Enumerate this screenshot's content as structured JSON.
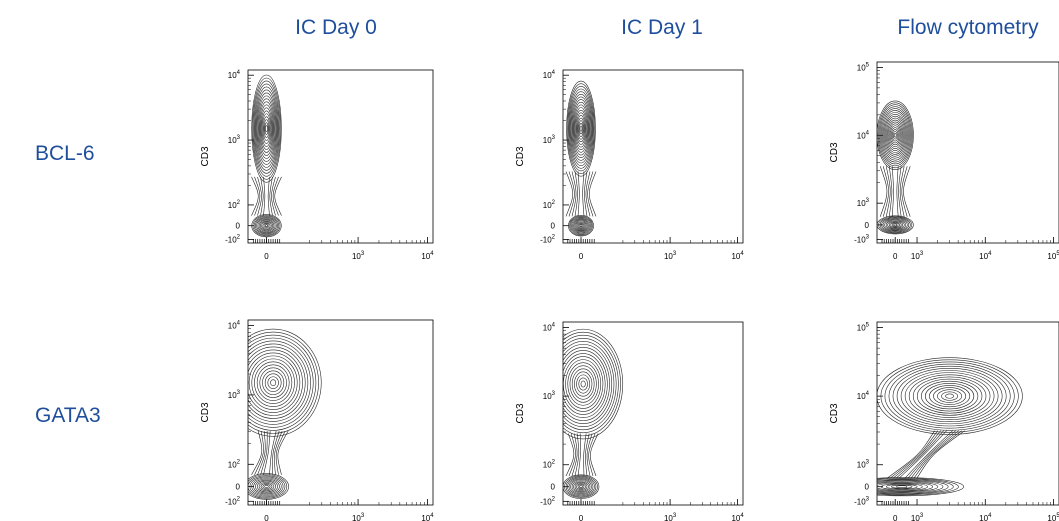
{
  "columns": [
    "IC Day 0",
    "IC Day 1",
    "Flow cytometry"
  ],
  "rows": [
    "BCL-6",
    "GATA3"
  ],
  "colors": {
    "header_text": "#1f4e9c",
    "contour": "#222222",
    "axis": "#000000"
  },
  "chart_data": [
    {
      "type": "contour",
      "row": "BCL-6",
      "column": "IC Day 0",
      "ylabel": "CD3",
      "xtick_labels": [
        {
          "base": "0",
          "exp": ""
        },
        {
          "base": "10",
          "exp": "3"
        },
        {
          "base": "10",
          "exp": "4"
        }
      ],
      "ytick_labels": [
        {
          "base": "-10",
          "exp": "2"
        },
        {
          "base": "0",
          "exp": ""
        },
        {
          "base": "10",
          "exp": "2"
        },
        {
          "base": "10",
          "exp": "3"
        },
        {
          "base": "10",
          "exp": "4"
        }
      ],
      "populations": [
        {
          "name": "CD3 high",
          "x": 0,
          "y": 1500,
          "extent_x": 0.08,
          "extent_y": 0.62,
          "density": 1.0
        },
        {
          "name": "CD3 negative",
          "x": 0,
          "y": 0,
          "extent_x": 0.08,
          "extent_y": 0.13,
          "density": 0.6
        }
      ]
    },
    {
      "type": "contour",
      "row": "BCL-6",
      "column": "IC Day 1",
      "ylabel": "CD3",
      "xtick_labels": [
        {
          "base": "0",
          "exp": ""
        },
        {
          "base": "10",
          "exp": "3"
        },
        {
          "base": "10",
          "exp": "4"
        }
      ],
      "ytick_labels": [
        {
          "base": "-10",
          "exp": "2"
        },
        {
          "base": "0",
          "exp": ""
        },
        {
          "base": "10",
          "exp": "2"
        },
        {
          "base": "10",
          "exp": "3"
        },
        {
          "base": "10",
          "exp": "4"
        }
      ],
      "populations": [
        {
          "name": "CD3 high",
          "x": 0,
          "y": 1500,
          "extent_x": 0.08,
          "extent_y": 0.55,
          "density": 1.0
        },
        {
          "name": "CD3 negative",
          "x": 0,
          "y": 0,
          "extent_x": 0.07,
          "extent_y": 0.12,
          "density": 0.6
        }
      ]
    },
    {
      "type": "contour",
      "row": "BCL-6",
      "column": "Flow cytometry",
      "ylabel": "CD3",
      "xtick_labels": [
        {
          "base": "0",
          "exp": ""
        },
        {
          "base": "10",
          "exp": "3"
        },
        {
          "base": "10",
          "exp": "4"
        },
        {
          "base": "10",
          "exp": "5"
        }
      ],
      "ytick_labels": [
        {
          "base": "-10",
          "exp": "3"
        },
        {
          "base": "0",
          "exp": ""
        },
        {
          "base": "10",
          "exp": "3"
        },
        {
          "base": "10",
          "exp": "4"
        },
        {
          "base": "10",
          "exp": "5"
        }
      ],
      "populations": [
        {
          "name": "CD3 high",
          "x": 0,
          "y": 10000,
          "extent_x": 0.1,
          "extent_y": 0.38,
          "density": 1.0
        },
        {
          "name": "CD3 negative",
          "x": 0,
          "y": 0,
          "extent_x": 0.1,
          "extent_y": 0.1,
          "density": 0.6
        }
      ]
    },
    {
      "type": "contour",
      "row": "GATA3",
      "column": "IC Day 0",
      "ylabel": "CD3",
      "xtick_labels": [
        {
          "base": "0",
          "exp": ""
        },
        {
          "base": "10",
          "exp": "3"
        },
        {
          "base": "10",
          "exp": "4"
        }
      ],
      "ytick_labels": [
        {
          "base": "-10",
          "exp": "2"
        },
        {
          "base": "0",
          "exp": ""
        },
        {
          "base": "10",
          "exp": "2"
        },
        {
          "base": "10",
          "exp": "3"
        },
        {
          "base": "10",
          "exp": "4"
        }
      ],
      "populations": [
        {
          "name": "CD3 high",
          "x": 30,
          "y": 1500,
          "extent_x": 0.26,
          "extent_y": 0.58,
          "density": 1.0
        },
        {
          "name": "CD3 negative",
          "x": 0,
          "y": 0,
          "extent_x": 0.12,
          "extent_y": 0.14,
          "density": 0.6
        }
      ]
    },
    {
      "type": "contour",
      "row": "GATA3",
      "column": "IC Day 1",
      "ylabel": "CD3",
      "xtick_labels": [
        {
          "base": "0",
          "exp": ""
        },
        {
          "base": "10",
          "exp": "3"
        },
        {
          "base": "10",
          "exp": "4"
        }
      ],
      "ytick_labels": [
        {
          "base": "-10",
          "exp": "2"
        },
        {
          "base": "0",
          "exp": ""
        },
        {
          "base": "10",
          "exp": "2"
        },
        {
          "base": "10",
          "exp": "3"
        },
        {
          "base": "10",
          "exp": "4"
        }
      ],
      "populations": [
        {
          "name": "CD3 high",
          "x": 10,
          "y": 1500,
          "extent_x": 0.22,
          "extent_y": 0.6,
          "density": 1.0
        },
        {
          "name": "CD3 negative",
          "x": 0,
          "y": 0,
          "extent_x": 0.1,
          "extent_y": 0.13,
          "density": 0.6
        }
      ]
    },
    {
      "type": "contour",
      "row": "GATA3",
      "column": "Flow cytometry",
      "ylabel": "CD3",
      "xtick_labels": [
        {
          "base": "0",
          "exp": ""
        },
        {
          "base": "10",
          "exp": "3"
        },
        {
          "base": "10",
          "exp": "4"
        },
        {
          "base": "10",
          "exp": "5"
        }
      ],
      "ytick_labels": [
        {
          "base": "-10",
          "exp": "3"
        },
        {
          "base": "0",
          "exp": ""
        },
        {
          "base": "10",
          "exp": "3"
        },
        {
          "base": "10",
          "exp": "4"
        },
        {
          "base": "10",
          "exp": "5"
        }
      ],
      "populations": [
        {
          "name": "CD3 high GATA3 positive",
          "x": 3000,
          "y": 10000,
          "extent_x": 0.4,
          "extent_y": 0.42,
          "density": 1.0
        },
        {
          "name": "CD3 negative",
          "x": 300,
          "y": 0,
          "extent_x": 0.34,
          "extent_y": 0.1,
          "density": 0.6
        }
      ]
    }
  ]
}
